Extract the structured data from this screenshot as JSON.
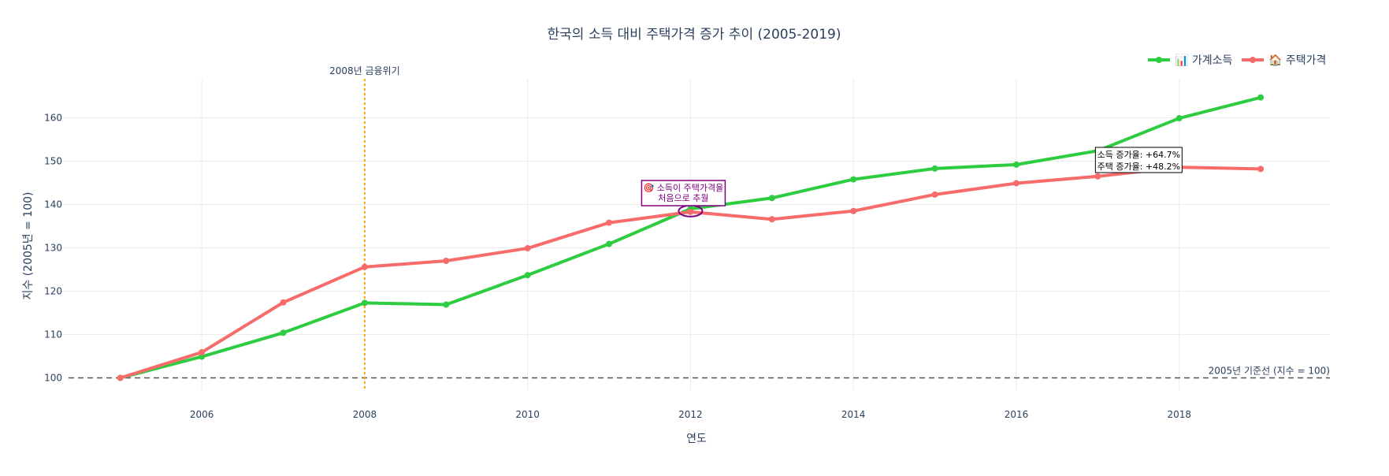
{
  "chart_data": {
    "type": "line",
    "title": "한국의 소득 대비 주택가격 증가 추이 (2005-2019)",
    "xlabel": "연도",
    "ylabel": "지수 (2005년 = 100)",
    "x": [
      2005,
      2006,
      2007,
      2008,
      2009,
      2010,
      2011,
      2012,
      2013,
      2014,
      2015,
      2016,
      2017,
      2018,
      2019
    ],
    "xlim": [
      2004.2,
      2019.85
    ],
    "ylim": [
      97,
      169
    ],
    "xticks": [
      2006,
      2008,
      2010,
      2012,
      2014,
      2016,
      2018
    ],
    "yticks": [
      100,
      110,
      120,
      130,
      140,
      150,
      160
    ],
    "grid": true,
    "legend_position": "top-right",
    "series": [
      {
        "name": "📊 가계소득",
        "color": "#2ecc40",
        "values": [
          100,
          104.9,
          110.4,
          117.3,
          116.9,
          123.7,
          130.9,
          139.0,
          141.5,
          145.8,
          148.3,
          149.2,
          152.4,
          159.9,
          164.7
        ]
      },
      {
        "name": "🏠 주택가격",
        "color": "#f76b6b",
        "values": [
          100,
          105.9,
          117.4,
          125.6,
          127.0,
          129.9,
          135.8,
          138.3,
          136.6,
          138.5,
          142.3,
          144.9,
          146.5,
          148.6,
          148.2
        ]
      }
    ],
    "annotations": {
      "crisis": {
        "x": 2008,
        "text": "2008년 금융위기",
        "color": "#ffa500"
      },
      "baseline": {
        "y": 100,
        "text": "2005년 기준선 (지수 = 100)",
        "color": "#555555"
      },
      "crossover": {
        "x": 2012,
        "y": 138.5,
        "lines": [
          "🎯 소득이 주택가격을",
          "처음으로 추월"
        ],
        "color": "#800080"
      },
      "growth": {
        "x": 2017,
        "lines": [
          "소득 증가율: +64.7%",
          "주택 증가율: +48.2%"
        ]
      }
    }
  }
}
